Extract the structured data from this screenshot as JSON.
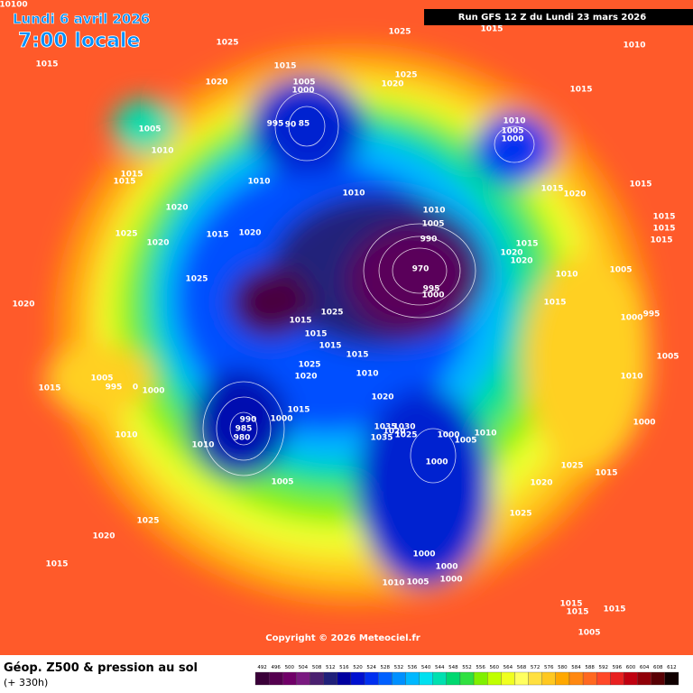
{
  "header": {
    "date": "Lundi 6 avril 2026",
    "time": "7:00 locale",
    "run": "Run GFS 12 Z du Lundi 23 mars 2026"
  },
  "isobar_labels": [
    10100,
    1025,
    1025,
    1015,
    1010,
    1015,
    1015,
    1020,
    1005,
    1000,
    1025,
    1020,
    1015,
    995,
    90,
    85,
    1010,
    1005,
    1000,
    1005,
    1010,
    1015,
    1015,
    1010,
    1010,
    1015,
    1020,
    1015,
    1020,
    1010,
    1005,
    990,
    1015,
    1015,
    1025,
    1020,
    1015,
    1020,
    1015,
    1015,
    1020,
    1020,
    970,
    1010,
    1005,
    1025,
    995,
    1000,
    1025,
    1020,
    1015,
    1000,
    995,
    1015,
    1015,
    1015,
    1015,
    1025,
    1020,
    1010,
    1005,
    995,
    0,
    1000,
    1015,
    1005,
    1010,
    1020,
    1015,
    990,
    1000,
    985,
    980,
    1035,
    1030,
    1020,
    1000,
    1005,
    1010,
    1000,
    1010,
    1010,
    1035,
    1025,
    1000,
    1025,
    1015,
    1020,
    1005,
    1025,
    1025,
    1020,
    1015,
    1000,
    1000,
    1010,
    1005,
    1000,
    1015,
    1015,
    1015,
    1005
  ],
  "copyright": "Copyright © 2026 Meteociel.fr",
  "footer": {
    "title": "Géop. Z500 & pression au sol",
    "lead": "(+ 330h)"
  },
  "colorbar": {
    "labels": [
      492,
      496,
      500,
      504,
      508,
      512,
      516,
      520,
      524,
      528,
      532,
      536,
      540,
      544,
      548,
      552,
      556,
      560,
      564,
      568,
      572,
      576,
      580,
      584,
      588,
      592,
      596,
      600,
      604,
      608,
      612
    ],
    "colors": [
      "#3a0038",
      "#55004f",
      "#700068",
      "#7a1a80",
      "#4a2070",
      "#20207a",
      "#0000a0",
      "#0010d0",
      "#0030f0",
      "#0060ff",
      "#0090ff",
      "#00b8ff",
      "#00e0f0",
      "#00e0b0",
      "#00d870",
      "#30e040",
      "#80f000",
      "#c0ff00",
      "#f0ff20",
      "#ffff60",
      "#ffe040",
      "#ffc820",
      "#ffa800",
      "#ff8810",
      "#ff6820",
      "#ff4828",
      "#e82020",
      "#c00010",
      "#900008",
      "#580004",
      "#100000"
    ]
  }
}
